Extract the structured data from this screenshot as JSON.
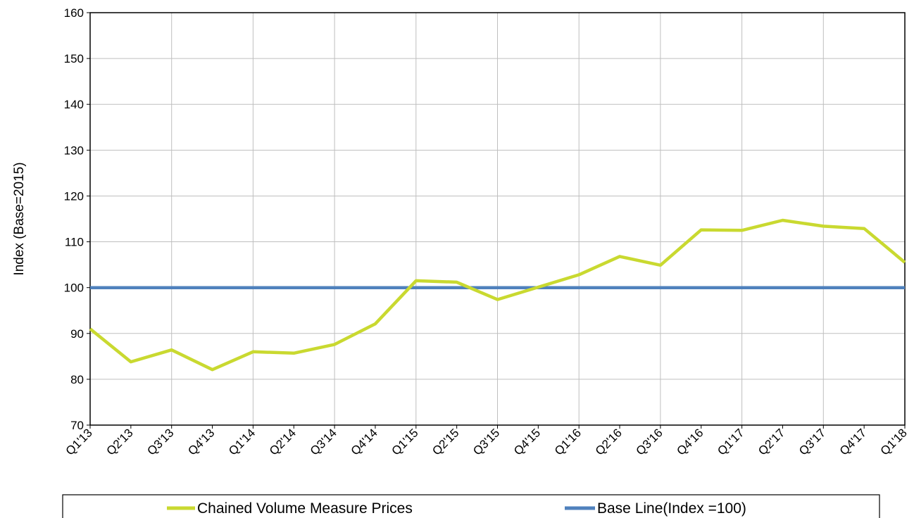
{
  "chart_data": {
    "type": "line",
    "ylabel": "Index (Base=2015)",
    "ylim": [
      70,
      160
    ],
    "yticks": [
      70,
      80,
      90,
      100,
      110,
      120,
      130,
      140,
      150,
      160
    ],
    "grid": true,
    "legend_position": "bottom",
    "categories": [
      "Q1'13",
      "Q2'13",
      "Q3'13",
      "Q4'13",
      "Q1'14",
      "Q2'14",
      "Q3'14",
      "Q4'14",
      "Q1'15",
      "Q2'15",
      "Q3'15",
      "Q4'15",
      "Q1'16",
      "Q2'16",
      "Q3'16",
      "Q4'16",
      "Q1'17",
      "Q2'17",
      "Q3'17",
      "Q4'17",
      "Q1'18"
    ],
    "series": [
      {
        "name": "Chained Volume Measure Prices",
        "color": "#c9d930",
        "values": [
          91,
          83.8,
          86.4,
          82.1,
          86,
          85.7,
          87.6,
          92.1,
          101.5,
          101.2,
          97.4,
          100.1,
          102.8,
          106.8,
          104.9,
          112.6,
          112.5,
          114.7,
          113.4,
          112.9,
          105.5
        ]
      },
      {
        "name": "Base Line(Index =100)",
        "color": "#4f81bd",
        "values": [
          100,
          100,
          100,
          100,
          100,
          100,
          100,
          100,
          100,
          100,
          100,
          100,
          100,
          100,
          100,
          100,
          100,
          100,
          100,
          100,
          100
        ]
      }
    ]
  }
}
